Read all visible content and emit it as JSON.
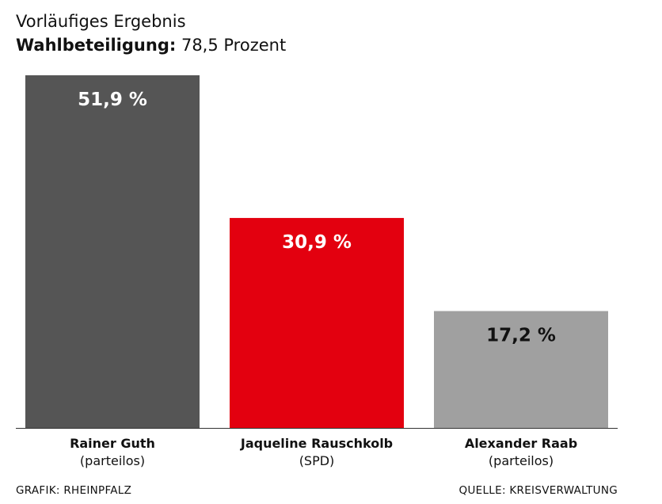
{
  "header": {
    "title": "Vorläufiges Ergebnis",
    "turnout_label": "Wahlbeteiligung",
    "turnout_sep": ":",
    "turnout_value": "78,5 Prozent"
  },
  "chart_data": {
    "type": "bar",
    "title": "Vorläufiges Ergebnis",
    "categories": [
      "Rainer Guth",
      "Jaqueline Rauschkolb",
      "Alexander Raab"
    ],
    "parties": [
      "(parteilos)",
      "(SPD)",
      "(parteilos)"
    ],
    "values": [
      51.9,
      30.9,
      17.2
    ],
    "value_labels": [
      "51,9 %",
      "30,9 %",
      "17,2 %"
    ],
    "colors": [
      "#555555",
      "#e3000f",
      "#a0a0a0"
    ],
    "label_colors": [
      "#ffffff",
      "#ffffff",
      "#111111"
    ],
    "ylim": [
      0,
      51.9
    ],
    "grid": false,
    "legend": "none"
  },
  "footer": {
    "left": "GRAFIK: RHEINPFALZ",
    "right": "QUELLE: KREISVERWALTUNG"
  }
}
